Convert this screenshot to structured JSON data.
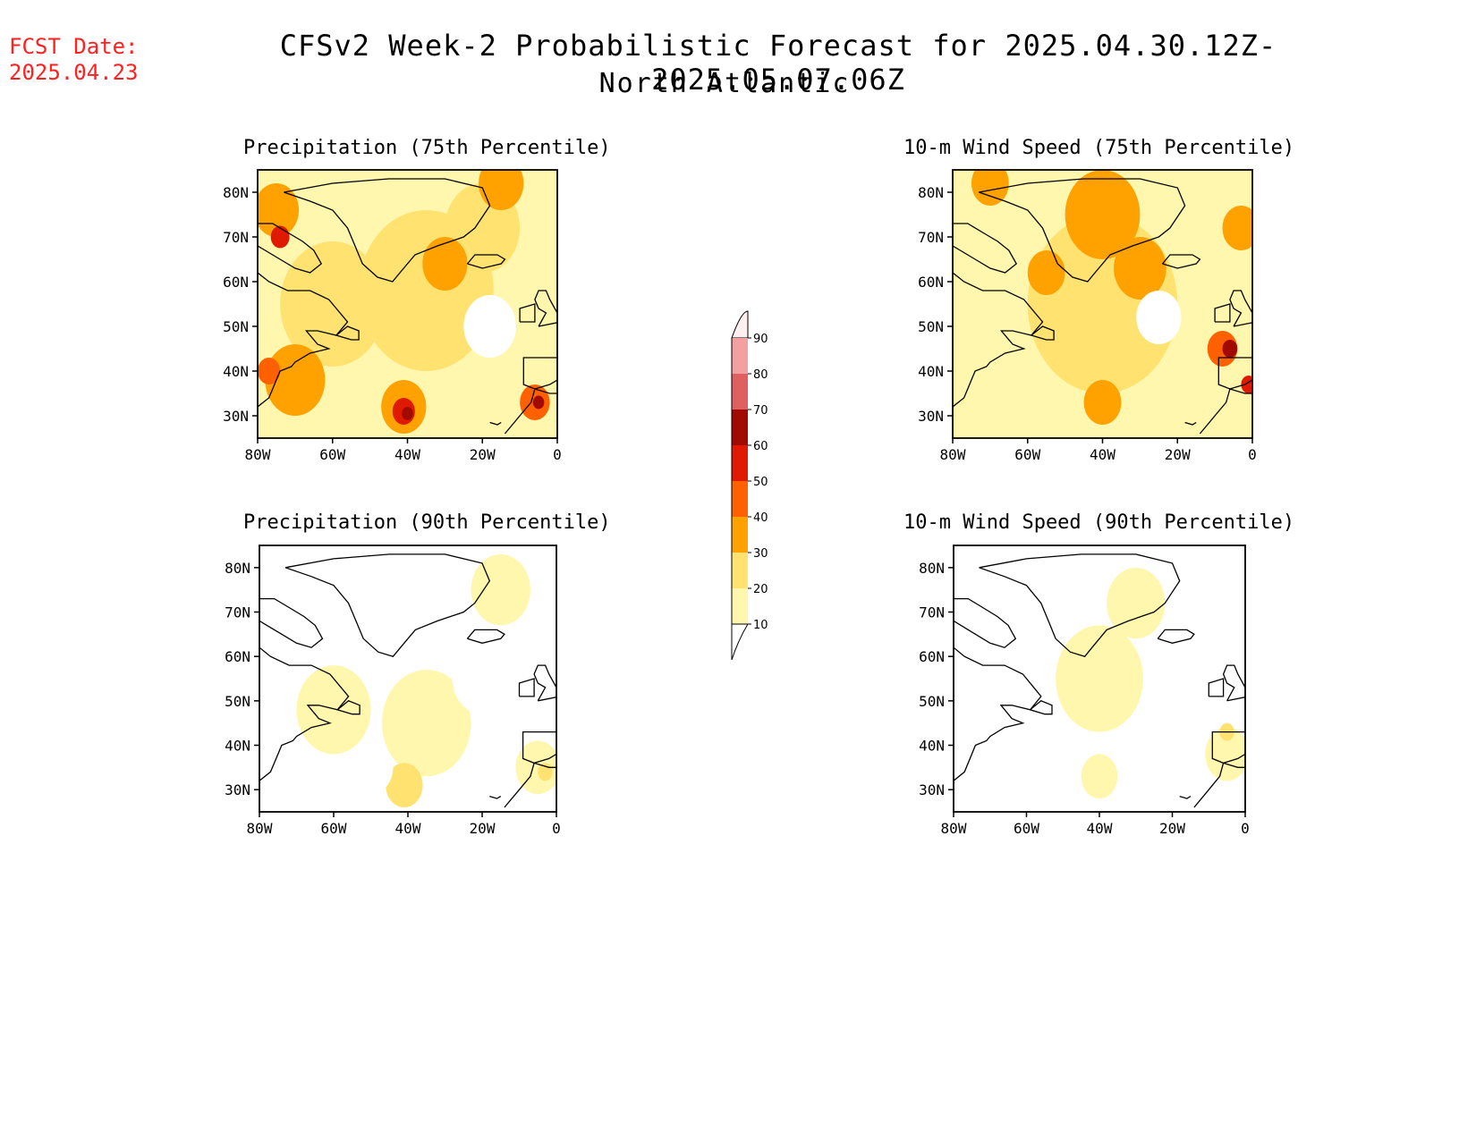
{
  "header": {
    "fcst_label": "FCST Date:",
    "fcst_date": "2025.04.23",
    "title": "CFSv2 Week-2 Probabilistic Forecast for 2025.04.30.12Z-2025.05.07.06Z",
    "region": "North Atlantic"
  },
  "axes": {
    "x_ticks": [
      "80W",
      "60W",
      "40W",
      "20W",
      "0"
    ],
    "y_ticks": [
      "80N",
      "70N",
      "60N",
      "50N",
      "40N",
      "30N"
    ],
    "lon_range": [
      -80,
      0
    ],
    "lat_range": [
      25,
      85
    ]
  },
  "panels": [
    {
      "title": "Precipitation (75th Percentile)",
      "features": [
        {
          "lon": -35,
          "lat": 58,
          "r": 18,
          "v": 20
        },
        {
          "lon": -60,
          "lat": 55,
          "r": 14,
          "v": 20
        },
        {
          "lon": -20,
          "lat": 72,
          "r": 10,
          "v": 20
        },
        {
          "lon": -70,
          "lat": 38,
          "r": 8,
          "v": 30
        },
        {
          "lon": -75,
          "lat": 76,
          "r": 6,
          "v": 30
        },
        {
          "lon": -30,
          "lat": 64,
          "r": 6,
          "v": 30
        },
        {
          "lon": -15,
          "lat": 82,
          "r": 6,
          "v": 30
        },
        {
          "lon": -41,
          "lat": 32,
          "r": 6,
          "v": 30
        },
        {
          "lon": -41,
          "lat": 31,
          "r": 3,
          "v": 50
        },
        {
          "lon": -40,
          "lat": 30.5,
          "r": 1.5,
          "v": 60
        },
        {
          "lon": -6,
          "lat": 33,
          "r": 4,
          "v": 40
        },
        {
          "lon": -5,
          "lat": 33,
          "r": 1.5,
          "v": 60
        },
        {
          "lon": -74,
          "lat": 70,
          "r": 2.5,
          "v": 50
        },
        {
          "lon": -77,
          "lat": 40,
          "r": 3,
          "v": 40
        },
        {
          "lon": -18,
          "lat": 50,
          "r": 7,
          "v": 0
        },
        {
          "lon": -48,
          "lat": 82,
          "r": 6,
          "v": 10
        },
        {
          "lon": -55,
          "lat": 33,
          "r": 6,
          "v": 10
        }
      ]
    },
    {
      "title": "10-m Wind Speed (75th Percentile)",
      "features": [
        {
          "lon": -40,
          "lat": 55,
          "r": 20,
          "v": 20
        },
        {
          "lon": -40,
          "lat": 75,
          "r": 10,
          "v": 30
        },
        {
          "lon": -30,
          "lat": 63,
          "r": 7,
          "v": 30
        },
        {
          "lon": -55,
          "lat": 62,
          "r": 5,
          "v": 30
        },
        {
          "lon": -3,
          "lat": 72,
          "r": 5,
          "v": 30
        },
        {
          "lon": -70,
          "lat": 82,
          "r": 5,
          "v": 30
        },
        {
          "lon": -40,
          "lat": 33,
          "r": 5,
          "v": 30
        },
        {
          "lon": -8,
          "lat": 45,
          "r": 4,
          "v": 40
        },
        {
          "lon": -6,
          "lat": 45,
          "r": 2,
          "v": 60
        },
        {
          "lon": -1,
          "lat": 37,
          "r": 2,
          "v": 50
        },
        {
          "lon": -25,
          "lat": 52,
          "r": 6,
          "v": 0
        },
        {
          "lon": -60,
          "lat": 31,
          "r": 5,
          "v": 10
        },
        {
          "lon": -20,
          "lat": 38,
          "r": 5,
          "v": 10
        }
      ]
    },
    {
      "title": "Precipitation (90th Percentile)",
      "features": [
        {
          "lon": -35,
          "lat": 45,
          "r": 12,
          "v": 10
        },
        {
          "lon": -60,
          "lat": 48,
          "r": 10,
          "v": 10
        },
        {
          "lon": -15,
          "lat": 75,
          "r": 8,
          "v": 10
        },
        {
          "lon": -5,
          "lat": 35,
          "r": 6,
          "v": 10
        },
        {
          "lon": -41,
          "lat": 31,
          "r": 5,
          "v": 20
        },
        {
          "lon": -3,
          "lat": 34,
          "r": 2,
          "v": 20
        },
        {
          "lon": -50,
          "lat": 35,
          "r": 6,
          "v": 0
        },
        {
          "lon": -20,
          "lat": 55,
          "r": 8,
          "v": 0
        }
      ]
    },
    {
      "title": "10-m Wind Speed (90th Percentile)",
      "features": [
        {
          "lon": -40,
          "lat": 55,
          "r": 12,
          "v": 10
        },
        {
          "lon": -30,
          "lat": 72,
          "r": 8,
          "v": 10
        },
        {
          "lon": -40,
          "lat": 33,
          "r": 5,
          "v": 10
        },
        {
          "lon": -5,
          "lat": 38,
          "r": 6,
          "v": 10
        },
        {
          "lon": -5,
          "lat": 43,
          "r": 2,
          "v": 20
        },
        {
          "lon": -70,
          "lat": 45,
          "r": 8,
          "v": 0
        },
        {
          "lon": -55,
          "lat": 30,
          "r": 6,
          "v": 0
        }
      ]
    }
  ],
  "colorbar": {
    "levels": [
      "10",
      "20",
      "30",
      "40",
      "50",
      "60",
      "70",
      "80",
      "90"
    ],
    "colors": [
      "#ffffff",
      "#fff7ad",
      "#ffe270",
      "#ffa200",
      "#ff6000",
      "#e01a00",
      "#a00a00",
      "#e06060",
      "#f3a0a0",
      "#fff0f0"
    ]
  }
}
